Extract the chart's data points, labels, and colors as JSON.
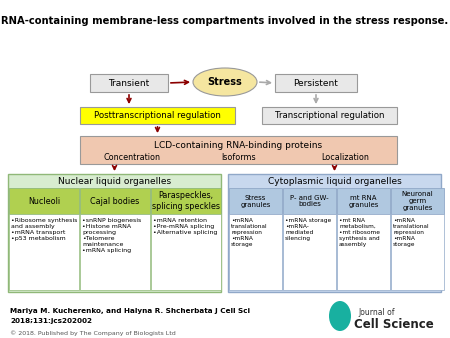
{
  "title": "RNA-containing membrane-less compartments involved in the stress response.",
  "bg_color": "#ffffff",
  "arrow_color": "#8b0000",
  "arrow_gray": "#aaaaaa",
  "stress_label": "Stress",
  "transient_label": "Transient",
  "persistent_label": "Persistent",
  "posttrans_label": "Posttranscriptional regulation",
  "trans_label": "Transcriptional regulation",
  "lcd_label": "LCD-containing RNA-binding proteins",
  "concentration_label": "Concentration",
  "isoforms_label": "Isoforms",
  "localization_label": "Localization",
  "nuclear_label": "Nuclear liquid organelles",
  "cyto_label": "Cytoplasmic liquid organelles",
  "nuclear_col_labels": [
    "Nucleoli",
    "Cajal bodies",
    "Paraspeckles,\nsplicing speckles"
  ],
  "cyto_col_labels": [
    "Stress\ngranules",
    "P- and GW-\nbodies",
    "mt RNA\ngranules",
    "Neuronal\ngerm\ngranules"
  ],
  "nuclear_content": [
    "•Ribosome synthesis\nand assembly\n•mRNA transport\n•p53 metabolism",
    "•snRNP biogenesis\n•Histone mRNA\nprocessing\n•Telomere\nmaintenance\n•mRNA splicing",
    "•mRNA retention\n•Pre-mRNA splicing\n•Alternative splicing"
  ],
  "cyto_content": [
    "•mRNA\ntranslational\nrepression\n•mRNA\nstorage",
    "•mRNA storage\n•mRNA-\nmediated\nsilencing",
    "•mt RNA\nmetabolism,\n•mt ribosome\nsynthesis and\nassembly",
    "•mRNA\ntranslational\nrepression\n•mRNA\nstorage"
  ],
  "citation_line1": "Mariya M. Kucherenko, and Halyna R. Shcherbata J Cell Sci",
  "citation_line2": "2018;131:jcs202002",
  "copyright": "© 2018. Published by The Company of Biologists Ltd",
  "stress_color": "#f5e6a0",
  "transient_color": "#e8e8e8",
  "persistent_color": "#e8e8e8",
  "posttrans_color": "#ffff00",
  "trans_color": "#e8e8e8",
  "lcd_color": "#f0c8b0",
  "nuclear_bg_color": "#d8ecd0",
  "nuclear_border_color": "#90b878",
  "nuclear_col_color": "#b0d050",
  "nuclear_content_color": "#ffffff",
  "cyto_bg_color": "#c8d8ee",
  "cyto_border_color": "#90a8c8",
  "cyto_col_color": "#b0c8e0",
  "cyto_content_color": "#ffffff",
  "box_border_color": "#999999"
}
